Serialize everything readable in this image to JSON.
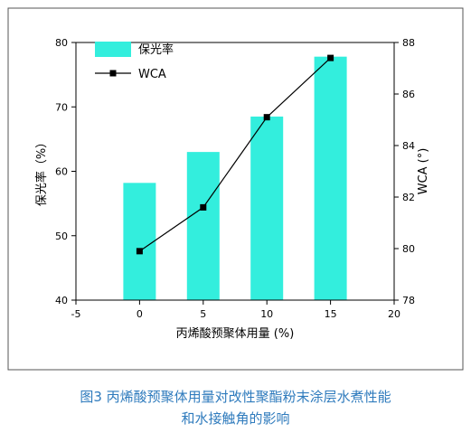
{
  "chart_data": {
    "type": "bar",
    "x_axis": {
      "label": "丙烯酸预聚体用量 (%)",
      "ticks": [
        -5,
        0,
        5,
        10,
        15,
        20
      ],
      "range": [
        -5,
        20
      ]
    },
    "y_left": {
      "label": "保光率（%）",
      "ticks": [
        40,
        50,
        60,
        70,
        80
      ],
      "range": [
        40,
        80
      ]
    },
    "y_right": {
      "label": "WCA (°)",
      "ticks": [
        78,
        80,
        82,
        84,
        86,
        88
      ],
      "range": [
        78,
        88
      ]
    },
    "series": [
      {
        "name": "保光率",
        "type": "bar",
        "axis": "left",
        "color": "#33eedd",
        "x": [
          0,
          5,
          10,
          15
        ],
        "values": [
          58.2,
          63.0,
          68.5,
          77.8
        ]
      },
      {
        "name": "WCA",
        "type": "line",
        "axis": "right",
        "color": "#000000",
        "marker": "square",
        "x": [
          0,
          5,
          10,
          15
        ],
        "values": [
          79.9,
          81.6,
          85.1,
          87.4
        ]
      }
    ],
    "legend_position": "top-left",
    "grid": false
  },
  "caption": {
    "line1": "图3 丙烯酸预聚体用量对改性聚酯粉末涂层水煮性能",
    "line2": "和水接触角的影响"
  }
}
